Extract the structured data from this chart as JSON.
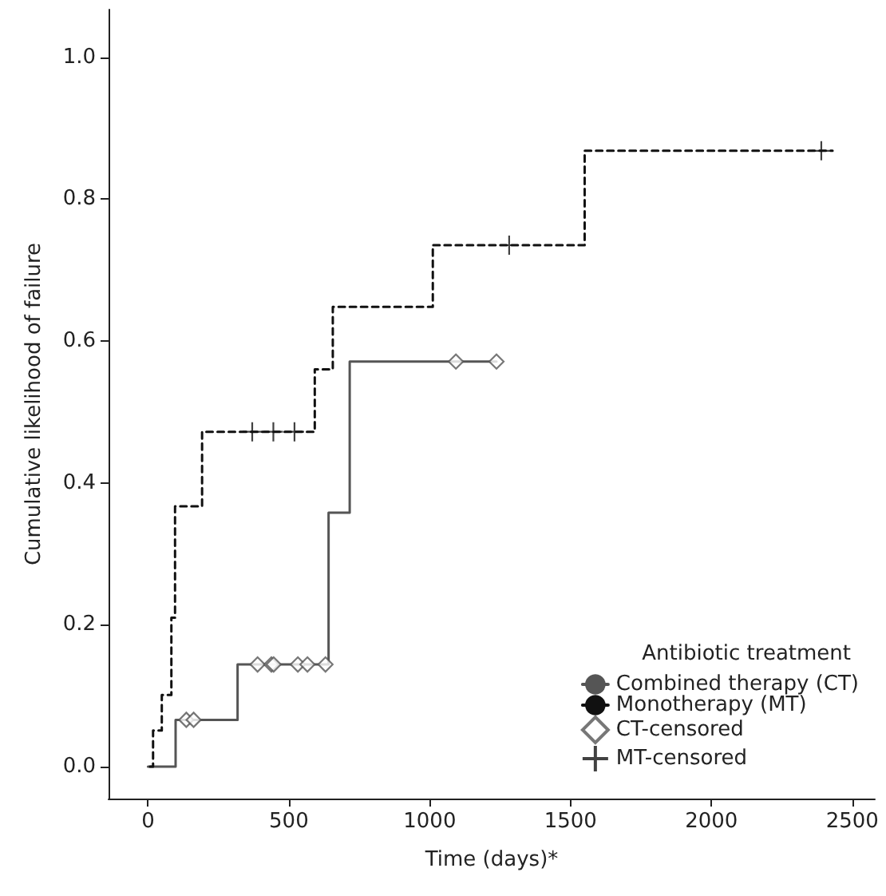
{
  "chart_data": {
    "type": "step",
    "xlabel": "Time (days)*",
    "ylabel": "Cumulative likelihood of failure",
    "legend_title": "Antibiotic treatment",
    "series": [
      {
        "name": "Combined therapy (CT)",
        "color": "#555555",
        "line_style": "solid",
        "marker": "none",
        "x": [
          0,
          98,
          318,
          641,
          716,
          1237
        ],
        "values": [
          0,
          0.066,
          0.144,
          0.358,
          0.571,
          0.571
        ]
      },
      {
        "name": "Monotherapy (MT)",
        "color": "#111111",
        "line_style": "dashed",
        "marker": "none",
        "x": [
          7,
          18,
          49,
          83,
          96,
          192,
          592,
          656,
          1011,
          1550,
          2430
        ],
        "values": [
          0,
          0.051,
          0.101,
          0.21,
          0.367,
          0.472,
          0.56,
          0.648,
          0.735,
          0.868,
          0.868
        ]
      },
      {
        "name": "CT-censored",
        "type": "scatter",
        "color": "#555555",
        "marker": "diamond",
        "x": [
          136,
          162,
          389,
          438,
          446,
          532,
          566,
          630,
          1093,
          1237
        ],
        "values": [
          0.066,
          0.066,
          0.144,
          0.144,
          0.144,
          0.144,
          0.144,
          0.144,
          0.571,
          0.571
        ]
      },
      {
        "name": "MT-censored",
        "type": "scatter",
        "color": "#111111",
        "marker": "cross",
        "x": [
          370,
          445,
          520,
          1282,
          2390
        ],
        "values": [
          0.472,
          0.472,
          0.472,
          0.735,
          0.868
        ]
      }
    ],
    "xlim": [
      -140,
      2580
    ],
    "xticks": [
      0,
      500,
      1000,
      1500,
      2000,
      2500
    ],
    "ylim": [
      -0.045,
      1.067
    ],
    "yticks": [
      {
        "value": 0,
        "label": "0.0"
      },
      {
        "value": 0.2,
        "label": "0.2"
      },
      {
        "value": 0.4,
        "label": "0.4"
      },
      {
        "value": 0.6,
        "label": "0.6"
      },
      {
        "value": 0.8,
        "label": "0.8"
      },
      {
        "value": 1,
        "label": "1.0"
      }
    ],
    "grid": false,
    "legend": "bottom right"
  }
}
